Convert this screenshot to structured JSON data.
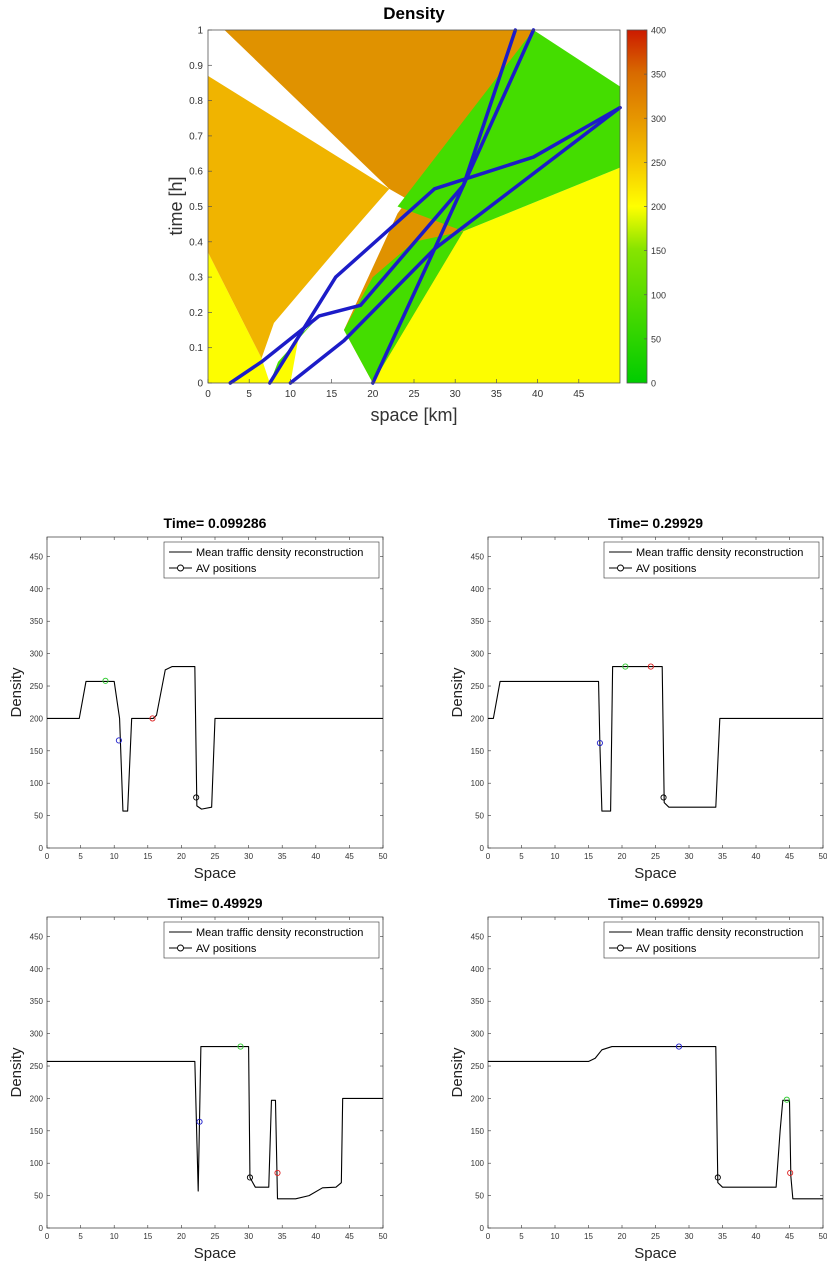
{
  "heatmap": {
    "title": "Density",
    "xlabel": "space [km]",
    "ylabel": "time [h]",
    "xticks": [
      "0",
      "5",
      "10",
      "15",
      "20",
      "25",
      "30",
      "35",
      "40",
      "45"
    ],
    "yticks": [
      "0",
      "0.1",
      "0.2",
      "0.3",
      "0.4",
      "0.5",
      "0.6",
      "0.7",
      "0.8",
      "0.9",
      "1"
    ],
    "colorbar_ticks": [
      "0",
      "50",
      "100",
      "150",
      "200",
      "250",
      "300",
      "350",
      "400"
    ],
    "colors": {
      "yellow": "#fdfd00",
      "light_orange": "#f0b400",
      "dark_orange": "#e09200",
      "green": "#44dd00",
      "trajectory": "#1c1cc8"
    }
  },
  "panels": [
    {
      "title": "Time= 0.099286",
      "xlabel": "Space",
      "ylabel": "Density"
    },
    {
      "title": "Time= 0.29929",
      "xlabel": "Space",
      "ylabel": "Density"
    },
    {
      "title": "Time= 0.49929",
      "xlabel": "Space",
      "ylabel": "Density"
    },
    {
      "title": "Time= 0.69929",
      "xlabel": "Space",
      "ylabel": "Density"
    }
  ],
  "legend": {
    "line_label": "Mean traffic density reconstruction",
    "marker_label": "AV positions"
  },
  "panel_xticks": [
    "0",
    "5",
    "10",
    "15",
    "20",
    "25",
    "30",
    "35",
    "40",
    "45",
    "50"
  ],
  "panel_yticks": [
    "0",
    "50",
    "100",
    "150",
    "200",
    "250",
    "300",
    "350",
    "400",
    "450"
  ],
  "chart_data": [
    {
      "type": "heatmap",
      "title": "Density",
      "xlabel": "space [km]",
      "ylabel": "time [h]",
      "xlim": [
        0,
        50
      ],
      "ylim": [
        0,
        1
      ],
      "colorbar_range": [
        0,
        400
      ],
      "regions": [
        {
          "name": "yellow",
          "density": 200,
          "polygon": [
            [
              0,
              0
            ],
            [
              50,
              0
            ],
            [
              50,
              0.61
            ],
            [
              31,
              0.43
            ],
            [
              20,
              0
            ],
            [
              10,
              0
            ],
            [
              11,
              0.13
            ],
            [
              7.5,
              0
            ],
            [
              6.5,
              0.07
            ],
            [
              0,
              0.37
            ]
          ]
        },
        {
          "name": "light_orange",
          "density": 255,
          "polygon": [
            [
              0,
              0.37
            ],
            [
              6.5,
              0.07
            ],
            [
              8,
              0.17
            ],
            [
              16,
              0.39
            ],
            [
              22,
              0.55
            ],
            [
              0,
              0.87
            ]
          ]
        },
        {
          "name": "dark_orange",
          "density": 280,
          "polygon": [
            [
              0,
              1
            ],
            [
              39.5,
              1
            ],
            [
              23,
              0.48
            ],
            [
              16.5,
              0.15
            ],
            [
              20,
              0
            ],
            [
              31,
              0.43
            ],
            [
              22,
              0.55
            ],
            [
              2,
              1
            ]
          ]
        },
        {
          "name": "green_lower",
          "density": 60,
          "polygon": [
            [
              7.5,
              0
            ],
            [
              11,
              0.13
            ],
            [
              13.5,
              0.19
            ],
            [
              8.5,
              0.06
            ]
          ]
        },
        {
          "name": "green_middle",
          "density": 60,
          "polygon": [
            [
              16.5,
              0.15
            ],
            [
              20,
              0
            ],
            [
              31,
              0.43
            ],
            [
              25,
              0.4
            ],
            [
              20,
              0.3
            ]
          ]
        },
        {
          "name": "green_upper",
          "density": 45,
          "polygon": [
            [
              39.5,
              1
            ],
            [
              50,
              0.84
            ],
            [
              50,
              0.61
            ],
            [
              31,
              0.43
            ],
            [
              23,
              0.5
            ]
          ]
        }
      ],
      "trajectories": [
        {
          "x": [
            2.7,
            6.5,
            13.5,
            18.5,
            31,
            37.3
          ],
          "y": [
            0,
            0.06,
            0.19,
            0.22,
            0.56,
            1
          ]
        },
        {
          "x": [
            7.5,
            15.5,
            27.5,
            39.5,
            50
          ],
          "y": [
            0,
            0.3,
            0.55,
            0.64,
            0.78
          ]
        },
        {
          "x": [
            10,
            16.5,
            27.5,
            50
          ],
          "y": [
            0,
            0.12,
            0.38,
            0.78
          ]
        },
        {
          "x": [
            20,
            27.5,
            31,
            39.5
          ],
          "y": [
            0,
            0.38,
            0.56,
            1
          ]
        }
      ]
    },
    {
      "type": "line",
      "title": "Time= 0.099286",
      "xlabel": "Space",
      "ylabel": "Density",
      "xlim": [
        0,
        50
      ],
      "ylim": [
        0,
        480
      ],
      "series": [
        {
          "name": "Mean traffic density reconstruction",
          "x": [
            0,
            4.8,
            5.8,
            10,
            10.8,
            11.3,
            12,
            12.6,
            15.8,
            16.3,
            17.6,
            18.6,
            22,
            22.3,
            23,
            24.5,
            25,
            50
          ],
          "y": [
            200,
            200,
            257,
            257,
            200,
            57,
            57,
            200,
            200,
            205,
            275,
            280,
            280,
            65,
            60,
            63,
            200,
            200
          ]
        },
        {
          "name": "AV positions",
          "points": [
            {
              "x": 8.7,
              "y": 258,
              "color": "#33cc33"
            },
            {
              "x": 10.7,
              "y": 166,
              "color": "#1f1fcc"
            },
            {
              "x": 15.7,
              "y": 200,
              "color": "#dd2222"
            },
            {
              "x": 22.2,
              "y": 78,
              "color": "#000000"
            }
          ]
        }
      ]
    },
    {
      "type": "line",
      "title": "Time= 0.29929",
      "xlabel": "Space",
      "ylabel": "Density",
      "xlim": [
        0,
        50
      ],
      "ylim": [
        0,
        480
      ],
      "series": [
        {
          "name": "Mean traffic density reconstruction",
          "x": [
            0,
            0.8,
            1.8,
            16.5,
            16.7,
            17,
            18.3,
            18.6,
            26,
            26.3,
            27,
            34,
            34.6,
            50
          ],
          "y": [
            200,
            200,
            257,
            257,
            160,
            57,
            57,
            280,
            280,
            70,
            63,
            63,
            200,
            200
          ]
        },
        {
          "name": "AV positions",
          "points": [
            {
              "x": 16.7,
              "y": 162,
              "color": "#1f1fcc"
            },
            {
              "x": 20.5,
              "y": 280,
              "color": "#33cc33"
            },
            {
              "x": 24.3,
              "y": 280,
              "color": "#dd2222"
            },
            {
              "x": 26.2,
              "y": 78,
              "color": "#000000"
            }
          ]
        }
      ]
    },
    {
      "type": "line",
      "title": "Time= 0.49929",
      "xlabel": "Space",
      "ylabel": "Density",
      "xlim": [
        0,
        50
      ],
      "ylim": [
        0,
        480
      ],
      "series": [
        {
          "name": "Mean traffic density reconstruction",
          "x": [
            0,
            22,
            22.5,
            22.9,
            30,
            30.2,
            31,
            33,
            33.4,
            34,
            34.3,
            34.8,
            37,
            39,
            41,
            43,
            43.8,
            44,
            50
          ],
          "y": [
            257,
            257,
            57,
            280,
            280,
            78,
            63,
            63,
            197,
            197,
            45,
            45,
            45,
            50,
            62,
            63,
            70,
            200,
            200
          ]
        },
        {
          "name": "AV positions",
          "points": [
            {
              "x": 22.7,
              "y": 164,
              "color": "#1f1fcc"
            },
            {
              "x": 28.8,
              "y": 280,
              "color": "#33cc33"
            },
            {
              "x": 30.2,
              "y": 78,
              "color": "#000000"
            },
            {
              "x": 34.3,
              "y": 85,
              "color": "#dd2222"
            }
          ]
        }
      ]
    },
    {
      "type": "line",
      "title": "Time= 0.69929",
      "xlabel": "Space",
      "ylabel": "Density",
      "xlim": [
        0,
        50
      ],
      "ylim": [
        0,
        480
      ],
      "series": [
        {
          "name": "Mean traffic density reconstruction",
          "x": [
            0,
            15,
            16,
            17,
            18.5,
            20,
            34,
            34.3,
            35,
            43,
            43.6,
            44,
            45,
            45.2,
            45.5,
            50
          ],
          "y": [
            257,
            257,
            262,
            275,
            280,
            280,
            280,
            70,
            63,
            63,
            150,
            197,
            197,
            80,
            45,
            45
          ]
        },
        {
          "name": "AV positions",
          "points": [
            {
              "x": 28.5,
              "y": 280,
              "color": "#1f1fcc"
            },
            {
              "x": 34.3,
              "y": 78,
              "color": "#000000"
            },
            {
              "x": 44.6,
              "y": 198,
              "color": "#33cc33"
            },
            {
              "x": 45.1,
              "y": 85,
              "color": "#dd2222"
            }
          ]
        }
      ]
    }
  ]
}
